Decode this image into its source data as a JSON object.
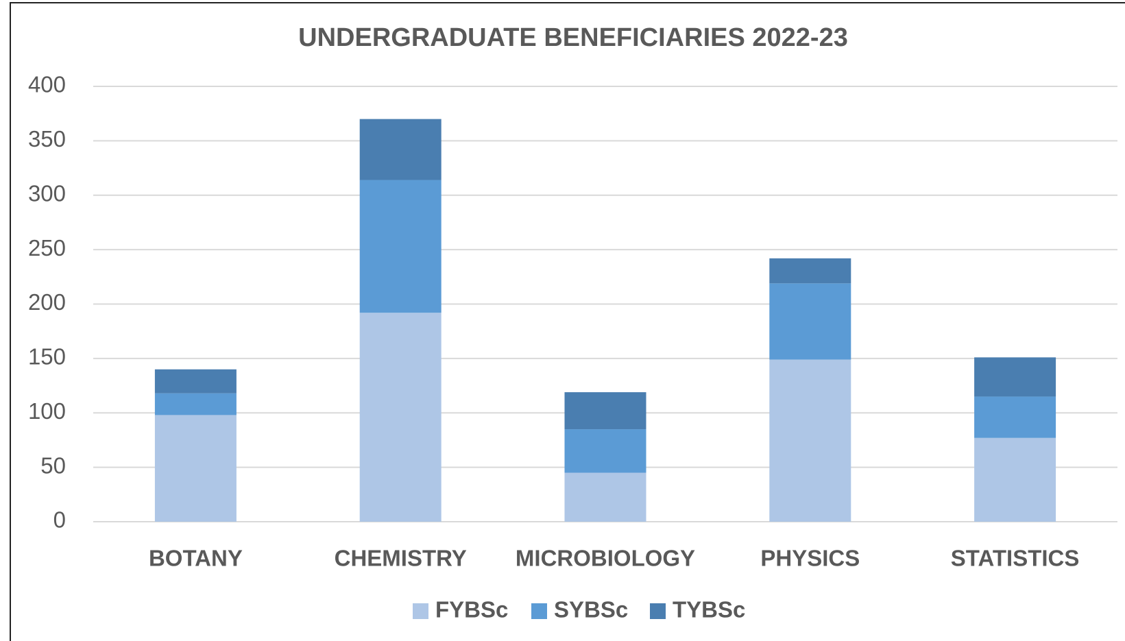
{
  "chart_data": {
    "type": "stacked_bar",
    "title": "UNDERGRADUATE BENEFICIARIES 2022-23",
    "categories": [
      "BOTANY",
      "CHEMISTRY",
      "MICROBIOLOGY",
      "PHYSICS",
      "STATISTICS"
    ],
    "series": [
      {
        "name": "FYBSc",
        "color": "#aec6e6",
        "values": [
          98,
          192,
          45,
          149,
          77
        ]
      },
      {
        "name": "SYBSc",
        "color": "#5b9bd5",
        "values": [
          20,
          122,
          40,
          70,
          38
        ]
      },
      {
        "name": "TYBSc",
        "color": "#4a7eb0",
        "values": [
          22,
          56,
          34,
          23,
          36
        ]
      }
    ],
    "ylim": [
      0,
      400
    ],
    "yticks": [
      0,
      50,
      100,
      150,
      200,
      250,
      300,
      350,
      400
    ],
    "grid": true,
    "legend": "bottom"
  }
}
